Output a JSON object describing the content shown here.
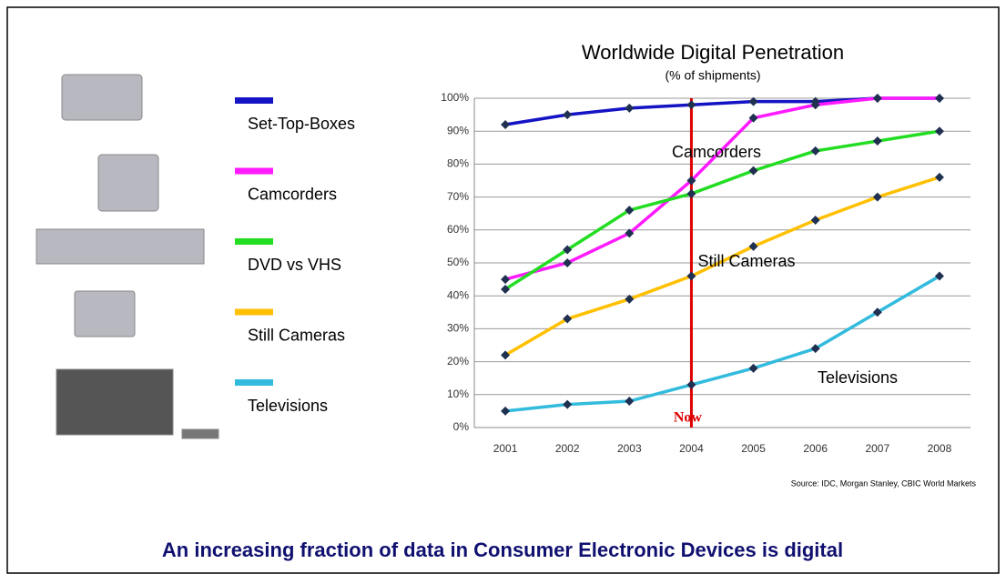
{
  "chart_data": {
    "type": "line",
    "title": "Worldwide Digital Penetration",
    "subtitle": "(% of shipments)",
    "categories": [
      "2001",
      "2002",
      "2003",
      "2004",
      "2005",
      "2006",
      "2007",
      "2008"
    ],
    "series": [
      {
        "name": "Set-Top-Boxes",
        "color": "#1414c4",
        "values": [
          92,
          95,
          97,
          98,
          99,
          99,
          100,
          100
        ]
      },
      {
        "name": "Camcorders",
        "color": "#ff1aff",
        "values": [
          45,
          50,
          59,
          75,
          94,
          98,
          100,
          100
        ]
      },
      {
        "name": "DVD vs VHS",
        "color": "#22dd22",
        "values": [
          42,
          54,
          66,
          71,
          78,
          84,
          87,
          90
        ]
      },
      {
        "name": "Still Cameras",
        "color": "#ffc000",
        "values": [
          22,
          33,
          39,
          46,
          55,
          63,
          70,
          76
        ]
      },
      {
        "name": "Televisions",
        "color": "#33bbdd",
        "values": [
          5,
          7,
          8,
          13,
          18,
          24,
          35,
          46
        ]
      }
    ],
    "ylim": [
      0,
      100
    ],
    "yticks": [
      {
        "value": 0,
        "label": "0%"
      },
      {
        "value": 10,
        "label": "10%"
      },
      {
        "value": 20,
        "label": "20%"
      },
      {
        "value": 30,
        "label": "30%"
      },
      {
        "value": 40,
        "label": "40%"
      },
      {
        "value": 50,
        "label": "50%"
      },
      {
        "value": 60,
        "label": "60%"
      },
      {
        "value": 70,
        "label": "70%"
      },
      {
        "value": 80,
        "label": "80%"
      },
      {
        "value": 90,
        "label": "90%"
      },
      {
        "value": 100,
        "label": "100%"
      }
    ],
    "grid": true,
    "annotations": [
      {
        "text": "Camcorders"
      },
      {
        "text": "Still Cameras"
      },
      {
        "text": "Televisions"
      }
    ],
    "marker_line": {
      "label": "Now",
      "category": "2004",
      "color": "#dd0000"
    },
    "source": "Source: IDC, Morgan Stanley, CBIC World Markets",
    "caption": "An increasing fraction of data in Consumer Electronic Devices is digital"
  }
}
